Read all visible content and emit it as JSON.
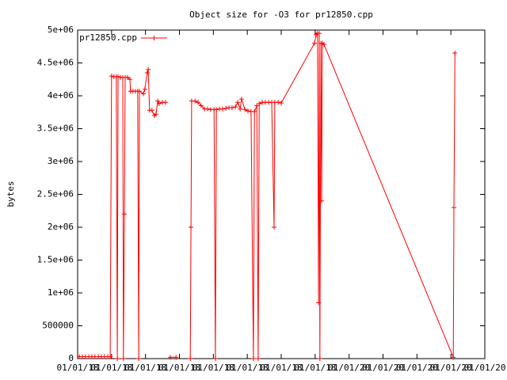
{
  "chart_data": {
    "type": "line",
    "title": "Object size for -O3 for pr12850.cpp",
    "y_label": "bytes",
    "legend": "top-left",
    "grid": false,
    "xlim": [
      0,
      12
    ],
    "xticks": [
      {
        "value": 0,
        "label": "01/01/18"
      },
      {
        "value": 1,
        "label": "01/01/18"
      },
      {
        "value": 2,
        "label": "01/01/18"
      },
      {
        "value": 3,
        "label": "01/01/18"
      },
      {
        "value": 4,
        "label": "01/01/18"
      },
      {
        "value": 5,
        "label": "01/01/18"
      },
      {
        "value": 6,
        "label": "01/01/18"
      },
      {
        "value": 7,
        "label": "01/01/18"
      },
      {
        "value": 8,
        "label": "01/01/20"
      },
      {
        "value": 9,
        "label": "01/01/20"
      },
      {
        "value": 10,
        "label": "01/01/20"
      },
      {
        "value": 11,
        "label": "01/01/20"
      },
      {
        "value": 12,
        "label": "01/01/20"
      }
    ],
    "ylim": [
      0,
      5000000
    ],
    "yticks": [
      0,
      500000,
      {
        "value": 1000000,
        "label": "1e+06"
      },
      {
        "value": 1500000,
        "label": "1.5e+06"
      },
      {
        "value": 2000000,
        "label": "2e+06"
      },
      {
        "value": 2500000,
        "label": "2.5e+06"
      },
      {
        "value": 3000000,
        "label": "3e+06"
      },
      {
        "value": 3500000,
        "label": "3.5e+06"
      },
      {
        "value": 4000000,
        "label": "4e+06"
      },
      {
        "value": 4500000,
        "label": "4.5e+06"
      },
      {
        "value": 5000000,
        "label": "5e+06"
      }
    ],
    "x": [
      0.05,
      0.14,
      0.23,
      0.33,
      0.42,
      0.51,
      0.61,
      0.7,
      0.79,
      0.89,
      0.96,
      1.0,
      1.07,
      1.14,
      1.17,
      1.19,
      1.26,
      1.33,
      1.35,
      1.38,
      1.4,
      1.47,
      1.54,
      1.56,
      1.63,
      1.7,
      1.77,
      1.8,
      1.82,
      1.94,
      1.98,
      2.05,
      2.08,
      2.12,
      2.19,
      2.26,
      2.31,
      2.36,
      2.4,
      2.5,
      2.59,
      2.66,
      2.73,
      2.9,
      3.1,
      3.32,
      3.34,
      3.36,
      3.46,
      3.55,
      3.64,
      3.74,
      3.83,
      3.92,
      4.02,
      4.06,
      4.09,
      4.18,
      4.27,
      4.37,
      4.46,
      4.55,
      4.65,
      4.72,
      4.79,
      4.83,
      4.93,
      5.02,
      5.11,
      5.18,
      5.21,
      5.28,
      5.32,
      5.35,
      5.44,
      5.53,
      5.63,
      5.72,
      5.79,
      5.81,
      5.91,
      6.0,
      6.98,
      7.03,
      7.07,
      7.1,
      7.12,
      7.14,
      7.17,
      7.19,
      7.21,
      7.26,
      11.07,
      11.09,
      11.12
    ],
    "series": [
      {
        "name": "pr12850.cpp",
        "color": "#ff0000",
        "values": [
          30000,
          30000,
          30000,
          30000,
          30000,
          30000,
          30000,
          30000,
          30000,
          30000,
          30000,
          4300000,
          4290000,
          4290000,
          0,
          4290000,
          4280000,
          4280000,
          0,
          2200000,
          4280000,
          4280000,
          4250000,
          4070000,
          4070000,
          4070000,
          4070000,
          0,
          4070000,
          4030000,
          4100000,
          4350000,
          4400000,
          3780000,
          3780000,
          3700000,
          3720000,
          3920000,
          3880000,
          3900000,
          3900000,
          null,
          20000,
          20000,
          null,
          0,
          2000000,
          3920000,
          3920000,
          3900000,
          3850000,
          3800000,
          3800000,
          3790000,
          3790000,
          0,
          3790000,
          3800000,
          3800000,
          3810000,
          3820000,
          3820000,
          3830000,
          3900000,
          3800000,
          3950000,
          3790000,
          3770000,
          3760000,
          0,
          3760000,
          3850000,
          0,
          3880000,
          3900000,
          3900000,
          3900000,
          3900000,
          2000000,
          3900000,
          3900000,
          3890000,
          4800000,
          4930000,
          4950000,
          850000,
          4950000,
          0,
          4800000,
          2400000,
          4800000,
          4780000,
          20000,
          2300000,
          4650000
        ]
      }
    ]
  }
}
